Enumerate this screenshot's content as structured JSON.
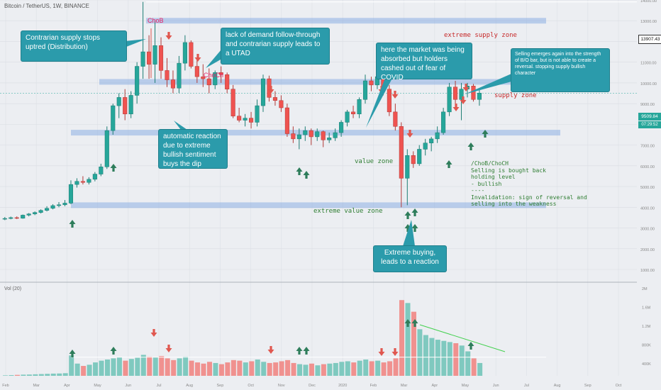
{
  "header": {
    "symbol": "Bitcoin / TetherUS, 1W, BINANCE"
  },
  "colors": {
    "up": "#26a69a",
    "down": "#ef5350",
    "zone": "#7aa2e0",
    "callout": "#2b9bab",
    "red_text": "#c62828",
    "green_text": "#2e7d32",
    "pink_text": "#e91e63"
  },
  "zones": [
    {
      "label": "extreme supply zone",
      "price": 13000
    },
    {
      "label": "supply zone",
      "price": 10050
    },
    {
      "label": "value zone",
      "price": 7600
    },
    {
      "label": "extreme value zone",
      "price": 4100
    }
  ],
  "markers": {
    "choB": "ChoB",
    "choCh": "ChoCh"
  },
  "callouts": {
    "distribution": "Contrarian supply stops uptred (Distribution)",
    "utad": "lack of demand follow-through and contrarian supply leads to a UTAD",
    "auto_reaction": "automatic reaction due to extreme bullish sentiment buys the dip",
    "covid": "here the market was being absorbed but holders cashed out of fear of COVID",
    "selling": "Selling emerges again into the strength of B/O bar, but is not able to create a reversal. stopping supply bullish character",
    "extreme_buying": "Extreme buying, leads to a reaction"
  },
  "notes": {
    "line1": "/ChoB/ChoCH",
    "line2": "Selling is bought back",
    "line3": "holding level",
    "line4": "- bullish",
    "line5": "----",
    "line6": "Invalidation: sign of reversal and",
    "line7": "selling into the weakness"
  },
  "price_tags": {
    "line_price": "13907.43",
    "last_price": "9509.84",
    "countdown": "07:29:52"
  },
  "volume": {
    "title": "Vol (20)",
    "axis_labels": [
      "2M",
      "1.6M",
      "1.2M",
      "800K",
      "400K"
    ]
  },
  "chart_data": {
    "type": "candlestick",
    "y_ticks": [
      14000,
      13000,
      12000,
      11000,
      10000,
      9000,
      8000,
      7000,
      6000,
      5000,
      4000,
      3000,
      2000,
      1000
    ],
    "x_tick_labels": [
      "Feb",
      "Mar",
      "Apr",
      "May",
      "Jun",
      "Jul",
      "Aug",
      "Sep",
      "Oct",
      "Nov",
      "Dec",
      "2020",
      "Feb",
      "Mar",
      "Apr",
      "May",
      "Jun",
      "Jul",
      "Aug",
      "Sep",
      "Oct"
    ],
    "candles": [
      [
        3450,
        3530,
        3380,
        3460
      ],
      [
        3460,
        3550,
        3420,
        3500
      ],
      [
        3500,
        3560,
        3430,
        3470
      ],
      [
        3470,
        3650,
        3450,
        3620
      ],
      [
        3620,
        3720,
        3560,
        3680
      ],
      [
        3680,
        3800,
        3620,
        3750
      ],
      [
        3750,
        3900,
        3700,
        3850
      ],
      [
        3850,
        4050,
        3800,
        3950
      ],
      [
        3950,
        4150,
        3900,
        4080
      ],
      [
        4080,
        4250,
        4000,
        4120
      ],
      [
        4120,
        4350,
        4050,
        4200
      ],
      [
        4200,
        5300,
        4150,
        5100
      ],
      [
        5100,
        5400,
        4950,
        5250
      ],
      [
        5250,
        5500,
        5100,
        5200
      ],
      [
        5200,
        5450,
        5100,
        5350
      ],
      [
        5350,
        5700,
        5250,
        5600
      ],
      [
        5600,
        6100,
        5500,
        5950
      ],
      [
        5950,
        7900,
        5850,
        7700
      ],
      [
        7700,
        9000,
        7500,
        8900
      ],
      [
        8900,
        9500,
        8300,
        9300
      ],
      [
        9300,
        9700,
        8200,
        8500
      ],
      [
        8500,
        9600,
        8300,
        9400
      ],
      [
        9400,
        11000,
        9000,
        10800
      ],
      [
        10800,
        13907,
        10200,
        11500
      ],
      [
        11500,
        12300,
        10200,
        10900
      ],
      [
        10900,
        13000,
        10000,
        11800
      ],
      [
        11800,
        12200,
        10200,
        10600
      ],
      [
        10600,
        11200,
        9800,
        10150
      ],
      [
        10150,
        10600,
        9500,
        9750
      ],
      [
        9750,
        11300,
        9500,
        10950
      ],
      [
        10950,
        12300,
        10600,
        11950
      ],
      [
        11950,
        12050,
        10700,
        10800
      ],
      [
        10800,
        11200,
        10000,
        10300
      ],
      [
        10300,
        10900,
        9800,
        10200
      ],
      [
        10200,
        10700,
        9500,
        9900
      ],
      [
        9900,
        10600,
        9700,
        10500
      ],
      [
        10500,
        10800,
        10000,
        10400
      ],
      [
        10400,
        10500,
        9500,
        9700
      ],
      [
        9700,
        9900,
        8300,
        8400
      ],
      [
        8400,
        8800,
        8100,
        8200
      ],
      [
        8200,
        8500,
        7900,
        8300
      ],
      [
        8300,
        8600,
        7800,
        8100
      ],
      [
        8100,
        9200,
        7900,
        8900
      ],
      [
        8900,
        10400,
        8600,
        10200
      ],
      [
        10200,
        10350,
        9100,
        9300
      ],
      [
        9300,
        9600,
        8900,
        9150
      ],
      [
        9150,
        9400,
        8600,
        8800
      ],
      [
        8800,
        9000,
        7400,
        7550
      ],
      [
        7550,
        7900,
        7100,
        7300
      ],
      [
        7300,
        7800,
        6800,
        7500
      ],
      [
        7500,
        7900,
        7200,
        7700
      ],
      [
        7700,
        7800,
        7000,
        7400
      ],
      [
        7400,
        7800,
        7200,
        7650
      ],
      [
        7650,
        7700,
        6900,
        7250
      ],
      [
        7250,
        7600,
        7100,
        7350
      ],
      [
        7350,
        7800,
        7200,
        7600
      ],
      [
        7600,
        8200,
        7400,
        8100
      ],
      [
        8100,
        8700,
        7900,
        8600
      ],
      [
        8600,
        8900,
        8300,
        8500
      ],
      [
        8500,
        9300,
        8300,
        9200
      ],
      [
        9200,
        10400,
        9000,
        10100
      ],
      [
        10100,
        10300,
        9600,
        9900
      ],
      [
        9900,
        10500,
        9700,
        10300
      ],
      [
        10300,
        10400,
        9400,
        9700
      ],
      [
        9700,
        9900,
        8400,
        8600
      ],
      [
        8600,
        9000,
        7700,
        7900
      ],
      [
        7900,
        8100,
        4000,
        5400
      ],
      [
        5400,
        6800,
        4100,
        6500
      ],
      [
        6500,
        6700,
        5900,
        6100
      ],
      [
        6100,
        7000,
        6000,
        6800
      ],
      [
        6800,
        7300,
        6500,
        7100
      ],
      [
        7100,
        7400,
        6700,
        7300
      ],
      [
        7300,
        7900,
        7100,
        7600
      ],
      [
        7600,
        8800,
        7500,
        8600
      ],
      [
        8600,
        10000,
        8400,
        9800
      ],
      [
        9800,
        10100,
        8800,
        9200
      ],
      [
        9200,
        10000,
        8200,
        9700
      ],
      [
        9700,
        10000,
        9300,
        9850
      ],
      [
        9850,
        9950,
        9100,
        9200
      ],
      [
        9200,
        9700,
        8900,
        9510
      ]
    ],
    "volume_k": [
      8,
      12,
      16,
      20,
      22,
      26,
      30,
      34,
      38,
      40,
      45,
      350,
      210,
      170,
      190,
      230,
      260,
      280,
      300,
      320,
      260,
      290,
      310,
      360,
      330,
      320,
      340,
      300,
      270,
      300,
      330,
      260,
      230,
      210,
      240,
      220,
      200,
      230,
      270,
      260,
      230,
      250,
      280,
      240,
      220,
      230,
      250,
      270,
      220,
      200,
      190,
      210,
      180,
      200,
      210,
      220,
      240,
      250,
      230,
      260,
      280,
      250,
      260,
      230,
      250,
      300,
      1300,
      1250,
      1100,
      800,
      700,
      650,
      620,
      600,
      580,
      560,
      520,
      420,
      300,
      220
    ],
    "volume_avg_k": 320,
    "ylim": [
      1000,
      14500
    ]
  }
}
